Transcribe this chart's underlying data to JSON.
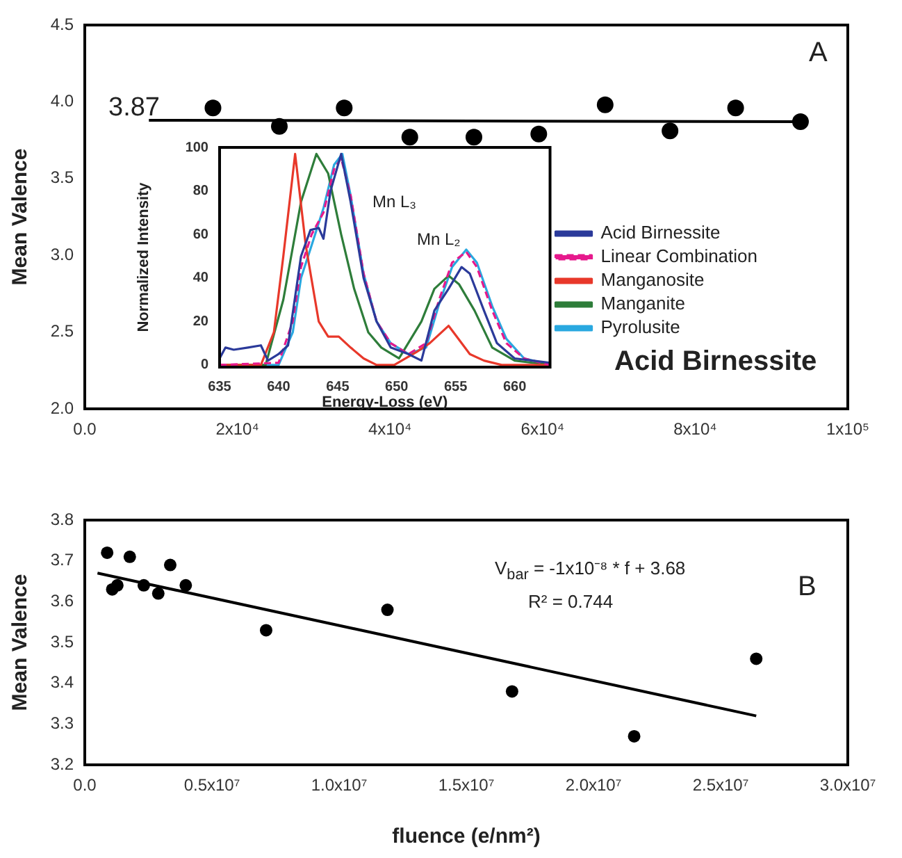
{
  "chart_data": [
    {
      "type": "scatter",
      "ylabel": "Mean Valence",
      "xlim": [
        0,
        100000
      ],
      "xticks": [
        {
          "value": 0,
          "label": "0.0"
        },
        {
          "value": 20000,
          "label": "2x10⁴"
        },
        {
          "value": 40000,
          "label": "4x10⁴"
        },
        {
          "value": 60000,
          "label": "6x10⁴"
        },
        {
          "value": 80000,
          "label": "8x10⁴"
        },
        {
          "value": 100000,
          "label": "1x10⁵"
        }
      ],
      "ylim": [
        2,
        4.5
      ],
      "yticks": [
        {
          "value": 2,
          "label": "2.0"
        },
        {
          "value": 2.5,
          "label": "2.5"
        },
        {
          "value": 3,
          "label": "3.0"
        },
        {
          "value": 3.5,
          "label": "3.5"
        },
        {
          "value": 4,
          "label": "4.0"
        },
        {
          "value": 4.5,
          "label": "4.5"
        }
      ],
      "grid": false,
      "legend": false,
      "annotations": [
        "3.87",
        "A",
        "Acid Birnessite"
      ],
      "series": [
        {
          "marker": "circle",
          "color": "#000000",
          "x": [
            16800,
            25500,
            34000,
            42600,
            51000,
            59500,
            68200,
            76700,
            85300,
            93800
          ],
          "values": [
            3.96,
            3.84,
            3.96,
            3.77,
            3.77,
            3.79,
            3.98,
            3.81,
            3.96,
            3.87
          ]
        },
        {
          "type": "line",
          "color": "#000000",
          "x": [
            8400,
            93800
          ],
          "values": [
            3.88,
            3.87
          ]
        }
      ]
    },
    {
      "type": "line",
      "xlabel": "Energy-Loss (eV)",
      "ylabel": "Normalized Intensity",
      "xlim": [
        635,
        663
      ],
      "xticks": [
        635,
        640,
        645,
        650,
        655,
        660
      ],
      "ylim": [
        -1,
        100
      ],
      "yticks": [
        0,
        20,
        40,
        60,
        80,
        100
      ],
      "grid": false,
      "legend": "right",
      "annotations": [
        "Mn L₃",
        "Mn L₂"
      ],
      "series": [
        {
          "name": "Acid Birnessite",
          "color": "#2b3a9a",
          "x": [
            635,
            635.5,
            636.2,
            637.4,
            638.5,
            639.1,
            640,
            640.8,
            641.9,
            642.7,
            643.4,
            643.8,
            644.4,
            645.3,
            646.1,
            647.2,
            648.3,
            649.5,
            651,
            652.1,
            653.2,
            654.4,
            655.5,
            656.2,
            657.4,
            658.5,
            660,
            661.5,
            663
          ],
          "values": [
            3,
            8,
            7,
            8,
            9,
            2,
            5,
            9,
            50,
            62,
            63,
            58,
            80,
            97,
            75,
            40,
            20,
            8,
            5,
            2,
            25,
            35,
            45,
            42,
            25,
            10,
            3,
            2,
            1
          ]
        },
        {
          "name": "Linear Combination",
          "color": "#e6198c",
          "line_style": "dashed",
          "x": [
            635,
            640,
            641.2,
            641.9,
            642.8,
            643.8,
            644.7,
            645.3,
            646.1,
            647.2,
            648.3,
            649.5,
            651,
            652.5,
            653.6,
            654.7,
            655.9,
            656.8,
            658.1,
            659.3,
            660.8,
            663
          ],
          "values": [
            0,
            1,
            20,
            45,
            60,
            70,
            90,
            95,
            78,
            42,
            20,
            10,
            5,
            10,
            30,
            47,
            52,
            45,
            25,
            10,
            3,
            0
          ]
        },
        {
          "name": "Manganosite",
          "color": "#e8382a",
          "x": [
            635,
            638.5,
            639.6,
            640.4,
            641.4,
            642.3,
            643.4,
            644.2,
            645.1,
            646.1,
            647.2,
            648.3,
            649.8,
            651.7,
            652.8,
            654.4,
            655.1,
            656.2,
            657.4,
            658.9,
            663
          ],
          "values": [
            0,
            0,
            15,
            50,
            97,
            55,
            20,
            13,
            13,
            8,
            3,
            0,
            0,
            6,
            10,
            18,
            13,
            5,
            2,
            0,
            0
          ]
        },
        {
          "name": "Manganite",
          "color": "#2e7d3a",
          "x": [
            635,
            638.9,
            640.4,
            641.9,
            643.2,
            644.2,
            645.3,
            646.4,
            647.6,
            648.7,
            650.2,
            652.1,
            653.2,
            654.4,
            655.3,
            656.6,
            658.1,
            660,
            663
          ],
          "values": [
            0,
            0,
            30,
            75,
            97,
            88,
            60,
            35,
            15,
            8,
            3,
            20,
            35,
            41,
            37,
            25,
            8,
            2,
            0
          ]
        },
        {
          "name": "Pyrolusite",
          "color": "#29a8e0",
          "x": [
            635,
            640,
            641.2,
            641.9,
            642.8,
            643.8,
            644.7,
            645.4,
            646.1,
            647.2,
            648.3,
            649.5,
            651,
            652.5,
            653.6,
            654.7,
            655.9,
            656.8,
            658.1,
            659.3,
            660.8,
            663
          ],
          "values": [
            0,
            0,
            15,
            40,
            55,
            72,
            92,
            97,
            78,
            42,
            20,
            10,
            5,
            8,
            28,
            45,
            53,
            47,
            27,
            12,
            3,
            0
          ]
        }
      ]
    },
    {
      "type": "scatter",
      "xlabel": "fluence (e/nm²)",
      "ylabel": "Mean Valence",
      "xlim": [
        0,
        30000000
      ],
      "xticks": [
        {
          "value": 0,
          "label": "0.0"
        },
        {
          "value": 5000000,
          "label": "0.5x10⁷"
        },
        {
          "value": 10000000,
          "label": "1.0x10⁷"
        },
        {
          "value": 15000000,
          "label": "1.5x10⁷"
        },
        {
          "value": 20000000,
          "label": "2.0x10⁷"
        },
        {
          "value": 25000000,
          "label": "2.5x10⁷"
        },
        {
          "value": 30000000,
          "label": "3.0x10⁷"
        }
      ],
      "ylim": [
        3.2,
        3.8
      ],
      "yticks": [
        {
          "value": 3.2,
          "label": "3.2"
        },
        {
          "value": 3.3,
          "label": "3.3"
        },
        {
          "value": 3.4,
          "label": "3.4"
        },
        {
          "value": 3.5,
          "label": "3.5"
        },
        {
          "value": 3.6,
          "label": "3.6"
        },
        {
          "value": 3.7,
          "label": "3.7"
        },
        {
          "value": 3.8,
          "label": "3.8"
        }
      ],
      "grid": false,
      "legend": false,
      "annotations": [
        "V$_{bar}$ = -1x10⁻⁸ * f + 3.68",
        "R² = 0.744",
        "B"
      ],
      "series": [
        {
          "marker": "circle",
          "color": "#000000",
          "x": [
            880000,
            1080000,
            1280000,
            1770000,
            2320000,
            2890000,
            3360000,
            3970000,
            7130000,
            11900000,
            16800000,
            21600000,
            26400000
          ],
          "values": [
            3.72,
            3.63,
            3.64,
            3.71,
            3.64,
            3.62,
            3.69,
            3.64,
            3.53,
            3.58,
            3.38,
            3.27,
            3.46
          ]
        },
        {
          "type": "line",
          "color": "#000000",
          "x": [
            500000,
            26400000
          ],
          "values": [
            3.67,
            3.32
          ]
        }
      ]
    }
  ]
}
